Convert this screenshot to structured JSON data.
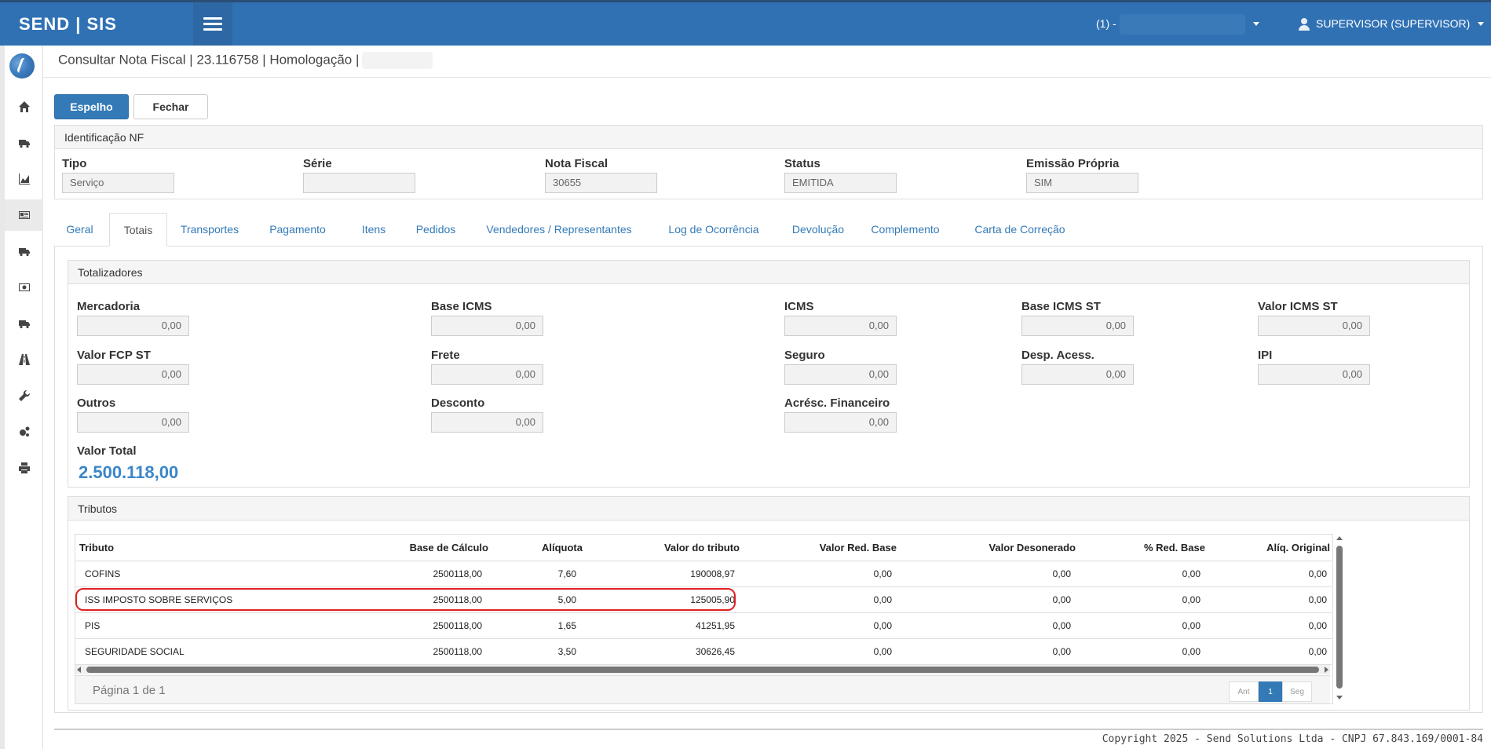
{
  "app": {
    "brand": "SEND | SIS",
    "company_prefix": "(1) -",
    "user": "SUPERVISOR (SUPERVISOR)"
  },
  "page": {
    "title": "Consultar Nota Fiscal | 23.116758 | Homologação |"
  },
  "toolbar": {
    "mirror_label": "Espelho",
    "close_label": "Fechar"
  },
  "identification": {
    "heading": "Identificação NF",
    "fields": {
      "tipo": {
        "label": "Tipo",
        "value": "Serviço"
      },
      "serie": {
        "label": "Série",
        "value": ""
      },
      "nota": {
        "label": "Nota Fiscal",
        "value": "30655"
      },
      "status": {
        "label": "Status",
        "value": "EMITIDA"
      },
      "emissao": {
        "label": "Emissão Própria",
        "value": "SIM"
      }
    }
  },
  "tabs": [
    "Geral",
    "Totais",
    "Transportes",
    "Pagamento",
    "Itens",
    "Pedidos",
    "Vendedores / Representantes",
    "Log de Ocorrência",
    "Devolução",
    "Complemento",
    "Carta de Correção"
  ],
  "active_tab": "Totais",
  "totalizadores": {
    "heading": "Totalizadores",
    "fields": [
      {
        "label": "Mercadoria",
        "value": "0,00"
      },
      {
        "label": "Base ICMS",
        "value": "0,00"
      },
      {
        "label": "ICMS",
        "value": "0,00"
      },
      {
        "label": "Base ICMS ST",
        "value": "0,00"
      },
      {
        "label": "Valor ICMS ST",
        "value": "0,00"
      },
      {
        "label": "Valor FCP ST",
        "value": "0,00"
      },
      {
        "label": "Frete",
        "value": "0,00"
      },
      {
        "label": "Seguro",
        "value": "0,00"
      },
      {
        "label": "Desp. Acess.",
        "value": "0,00"
      },
      {
        "label": "IPI",
        "value": "0,00"
      },
      {
        "label": "Outros",
        "value": "0,00"
      },
      {
        "label": "Desconto",
        "value": "0,00"
      },
      {
        "label": "Acrésc. Financeiro",
        "value": "0,00"
      }
    ],
    "total_label": "Valor Total",
    "total_value": "2.500.118,00"
  },
  "tributos": {
    "heading": "Tributos",
    "columns": [
      "Tributo",
      "Base de Cálculo",
      "Alíquota",
      "Valor do tributo",
      "Valor Red. Base",
      "Valor Desonerado",
      "% Red. Base",
      "Alíq. Original"
    ],
    "rows": [
      [
        "COFINS",
        "2500118,00",
        "7,60",
        "190008,97",
        "0,00",
        "0,00",
        "0,00",
        "0,00"
      ],
      [
        "ISS IMPOSTO SOBRE SERVIÇOS",
        "2500118,00",
        "5,00",
        "125005,90",
        "0,00",
        "0,00",
        "0,00",
        "0,00"
      ],
      [
        "PIS",
        "2500118,00",
        "1,65",
        "41251,95",
        "0,00",
        "0,00",
        "0,00",
        "0,00"
      ],
      [
        "SEGURIDADE SOCIAL",
        "2500118,00",
        "3,50",
        "30626,45",
        "0,00",
        "0,00",
        "0,00",
        "0,00"
      ]
    ],
    "page_text": "Página 1 de 1",
    "pager": {
      "prev": "Ant",
      "current": "1",
      "next": "Seg"
    }
  },
  "footer": "Copyright 2025 - Send Solutions Ltda - CNPJ 67.843.169/0001-84",
  "colors": {
    "header": "#3071b4",
    "primary": "#337ab7",
    "highlight": "#e02020",
    "total": "#3a86c8"
  }
}
